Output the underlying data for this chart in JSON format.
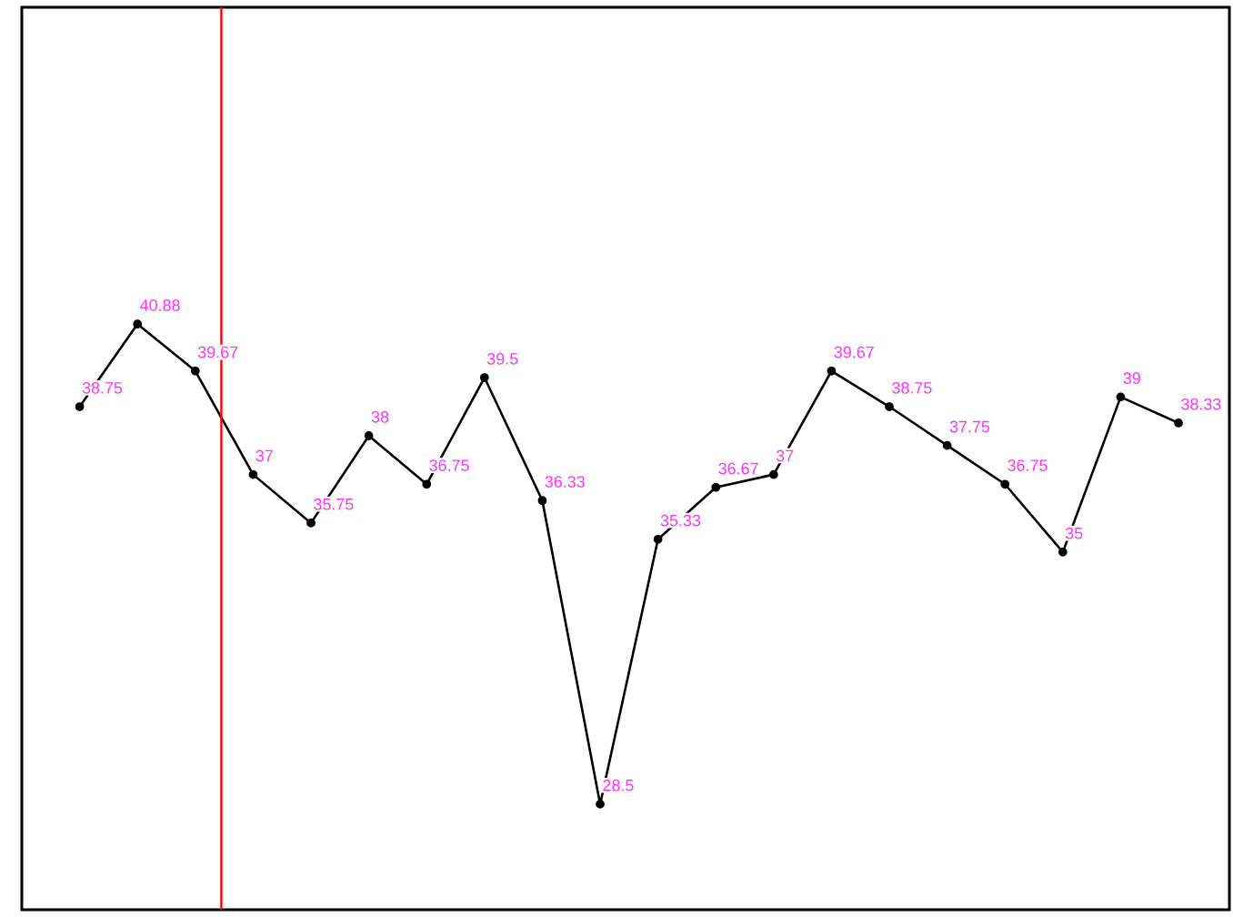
{
  "chart_data": {
    "type": "line",
    "categories": [
      null,
      null,
      null,
      null,
      null,
      null,
      null,
      null,
      null,
      null,
      null,
      null,
      null,
      null,
      null,
      null,
      null,
      null,
      null,
      null
    ],
    "series": [
      {
        "color": "#000000",
        "values": [
          38.75,
          40.88,
          39.67,
          37,
          35.75,
          38,
          36.75,
          39.5,
          36.33,
          28.5,
          35.33,
          36.67,
          37,
          39.67,
          38.75,
          37.75,
          36.75,
          35,
          39,
          38.33
        ]
      }
    ],
    "data_labels": true,
    "marker": "circle",
    "line_style": "solid",
    "tick_labels": false
  }
}
